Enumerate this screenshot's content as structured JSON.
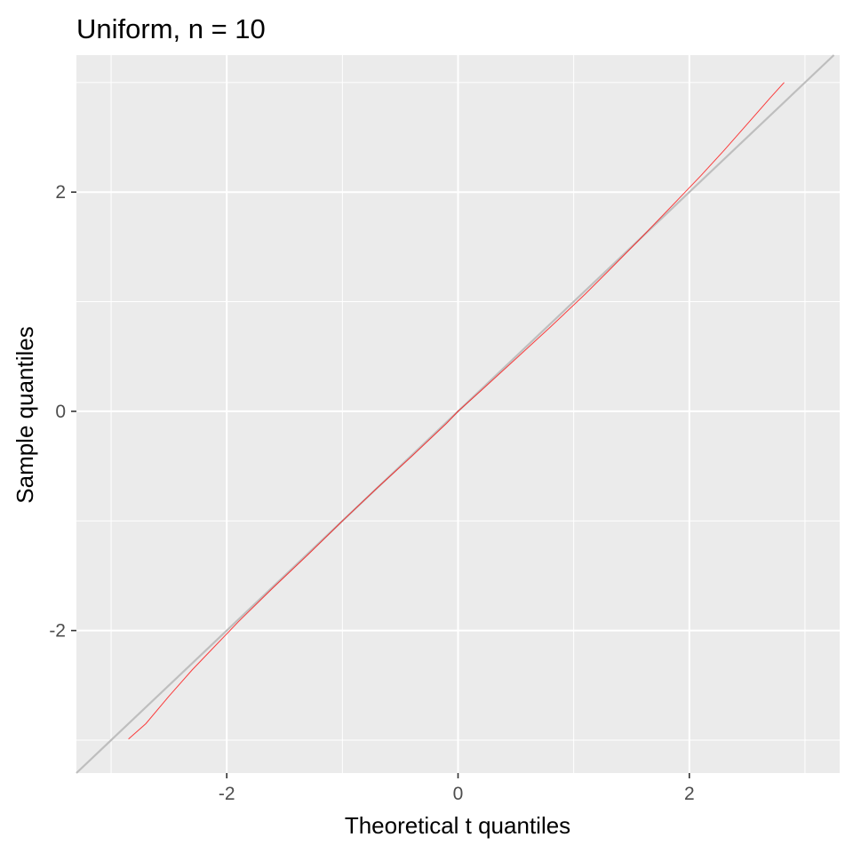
{
  "chart_data": {
    "type": "line",
    "title": "Uniform, n = 10",
    "xlabel": "Theoretical t quantiles",
    "ylabel": "Sample quantiles",
    "xlim": [
      -3.3,
      3.3
    ],
    "ylim": [
      -3.3,
      3.25
    ],
    "x_ticks": [
      -2,
      0,
      2
    ],
    "x_tick_labels": [
      "-2",
      "0",
      "2"
    ],
    "y_ticks": [
      -2,
      0,
      2
    ],
    "y_tick_labels": [
      "-2",
      "0",
      "2"
    ],
    "x_minor_gridlines": [
      -3,
      -1,
      1,
      3
    ],
    "y_minor_gridlines": [
      -3,
      -1,
      1,
      3
    ],
    "grid": true,
    "reference_line": {
      "intercept": 0,
      "slope": 1,
      "color": "#bebebe"
    },
    "series": [
      {
        "color": "#ff0000",
        "x": [
          -2.85,
          -2.7,
          -2.5,
          -2.3,
          -2.1,
          -1.9,
          -1.6,
          -1.3,
          -1.0,
          -0.7,
          -0.4,
          -0.1,
          0.0,
          0.2,
          0.5,
          0.8,
          1.1,
          1.3,
          1.6,
          1.9,
          2.1,
          2.3,
          2.5,
          2.7,
          2.82
        ],
        "y": [
          -2.99,
          -2.85,
          -2.6,
          -2.36,
          -2.14,
          -1.92,
          -1.61,
          -1.31,
          -1.0,
          -0.7,
          -0.41,
          -0.11,
          0.0,
          0.19,
          0.48,
          0.77,
          1.07,
          1.28,
          1.6,
          1.93,
          2.15,
          2.38,
          2.62,
          2.86,
          3.0
        ]
      }
    ],
    "colors": {
      "panel": "#ebebeb",
      "grid": "#ffffff",
      "line": "#ff0000",
      "reference": "#bebebe"
    }
  }
}
